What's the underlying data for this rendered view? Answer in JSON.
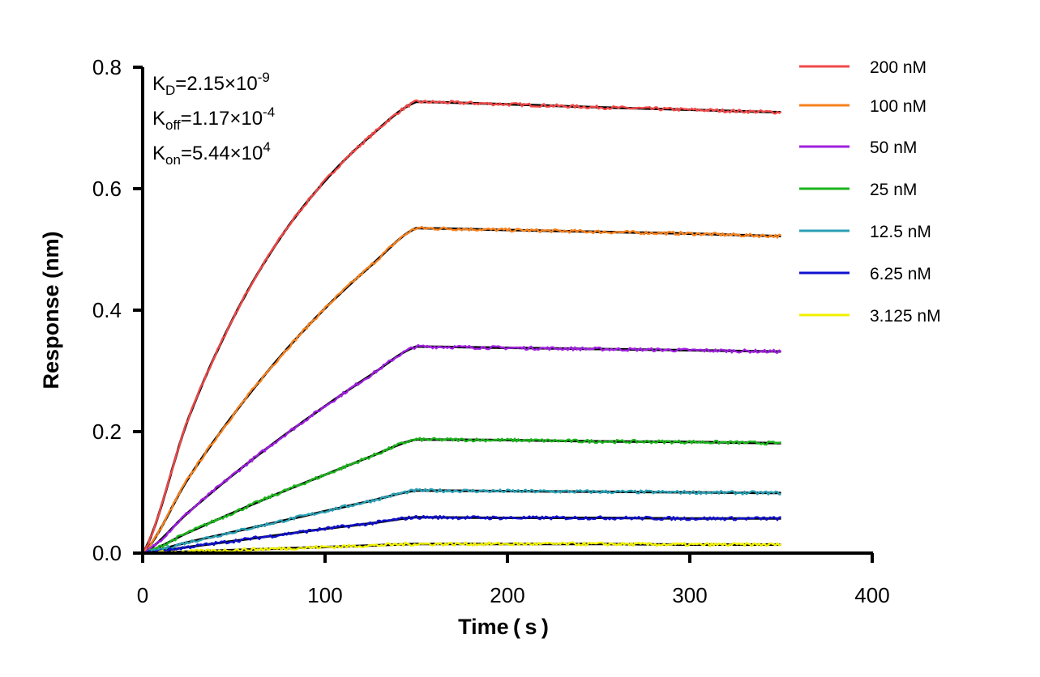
{
  "chart_data": {
    "type": "line",
    "title": "",
    "xlabel": "Time ( s )",
    "ylabel": "Response (nm)",
    "xlim": [
      0,
      400
    ],
    "ylim": [
      0,
      0.8
    ],
    "xticks": [
      "0",
      "100",
      "200",
      "300",
      "400"
    ],
    "yticks": [
      "0.0",
      "0.2",
      "0.4",
      "0.6",
      "0.8"
    ],
    "grid": false,
    "legend_position": "right",
    "fit_line_color": "#000000",
    "annotations": {
      "kd": {
        "label": "K",
        "sub": "D",
        "value": "=2.15×10",
        "exp": "-9"
      },
      "koff": {
        "label": "K",
        "sub": "off",
        "value": "=1.17×10",
        "exp": "-4"
      },
      "kon": {
        "label": "K",
        "sub": "on",
        "value": "=5.44×10",
        "exp": "4"
      }
    },
    "x": [
      0,
      25,
      50,
      75,
      100,
      125,
      150,
      200,
      250,
      300,
      350
    ],
    "series": [
      {
        "name": "200 nM",
        "color": "#f04848",
        "values": [
          0,
          0.221,
          0.389,
          0.517,
          0.613,
          0.687,
          0.743,
          0.739,
          0.734,
          0.73,
          0.726
        ]
      },
      {
        "name": "100 nM",
        "color": "#f5821f",
        "values": [
          0,
          0.123,
          0.229,
          0.322,
          0.403,
          0.473,
          0.535,
          0.532,
          0.529,
          0.526,
          0.522
        ]
      },
      {
        "name": "50 nM",
        "color": "#a020e0",
        "values": [
          0,
          0.067,
          0.13,
          0.188,
          0.242,
          0.293,
          0.34,
          0.338,
          0.336,
          0.334,
          0.332
        ]
      },
      {
        "name": "25 nM",
        "color": "#1cb41c",
        "values": [
          0,
          0.034,
          0.067,
          0.099,
          0.129,
          0.159,
          0.187,
          0.186,
          0.184,
          0.183,
          0.181
        ]
      },
      {
        "name": "12.5 nM",
        "color": "#2aa0b4",
        "values": [
          0,
          0.018,
          0.035,
          0.052,
          0.069,
          0.086,
          0.103,
          0.102,
          0.101,
          0.1,
          0.099
        ]
      },
      {
        "name": "6.25 nM",
        "color": "#1010d0",
        "values": [
          0,
          0.01,
          0.02,
          0.03,
          0.04,
          0.049,
          0.059,
          0.058,
          0.058,
          0.057,
          0.057
        ]
      },
      {
        "name": "3.125 nM",
        "color": "#f0f000",
        "values": [
          0,
          0.0025,
          0.005,
          0.0075,
          0.01,
          0.0125,
          0.015,
          0.015,
          0.015,
          0.014,
          0.014
        ]
      }
    ]
  }
}
